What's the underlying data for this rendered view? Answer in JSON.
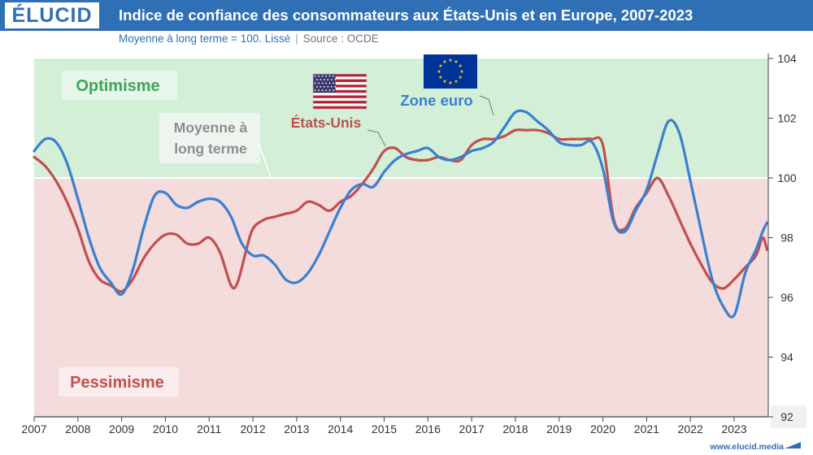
{
  "header": {
    "logo": "ÉLUCID",
    "title": "Indice de confiance des consommateurs aux États-Unis et en Europe, 2007-2023"
  },
  "subtitle": {
    "main": "Moyenne à long terme = 100. Lissé",
    "source": "Source : OCDE"
  },
  "footer": {
    "url": "www.elucid.media"
  },
  "colors": {
    "header": "#2f6fb6",
    "optimism_zone": "#d3efd8",
    "pessimism_zone": "#f4dbdc",
    "us": "#c0504d",
    "euro": "#3a7fd0",
    "optimism_text": "#3fa55b",
    "pessimism_text": "#c0504d"
  },
  "chart_data": {
    "type": "line",
    "title": "Indice de confiance des consommateurs aux États-Unis et en Europe, 2007-2023",
    "subtitle": "Moyenne à long terme = 100. Lissé",
    "xlabel": "",
    "ylabel": "",
    "xlim": [
      2007,
      2023.75
    ],
    "ylim": [
      92,
      104
    ],
    "x_ticks": [
      2007,
      2008,
      2009,
      2010,
      2011,
      2012,
      2013,
      2014,
      2015,
      2016,
      2017,
      2018,
      2019,
      2020,
      2021,
      2022,
      2023
    ],
    "y_ticks": [
      92,
      94,
      96,
      98,
      100,
      102,
      104
    ],
    "y_axis_position": "right",
    "reference_line": {
      "y": 100,
      "label": "Moyenne à long terme"
    },
    "zones": [
      {
        "label": "Optimisme",
        "from": 100,
        "to": 104
      },
      {
        "label": "Pessimisme",
        "from": 92,
        "to": 100
      }
    ],
    "series": [
      {
        "name": "États-Unis",
        "x": [
          2007,
          2007.25,
          2007.5,
          2007.75,
          2008,
          2008.25,
          2008.5,
          2008.75,
          2009,
          2009.25,
          2009.5,
          2009.75,
          2010,
          2010.25,
          2010.5,
          2010.75,
          2011,
          2011.25,
          2011.5,
          2011.65,
          2011.85,
          2012,
          2012.25,
          2012.5,
          2012.75,
          2013,
          2013.25,
          2013.5,
          2013.75,
          2014,
          2014.25,
          2014.5,
          2014.75,
          2015,
          2015.25,
          2015.5,
          2015.75,
          2016,
          2016.25,
          2016.5,
          2016.75,
          2017,
          2017.25,
          2017.5,
          2017.75,
          2018,
          2018.25,
          2018.5,
          2018.75,
          2019,
          2019.25,
          2019.5,
          2019.75,
          2020,
          2020.25,
          2020.5,
          2020.75,
          2021,
          2021.25,
          2021.5,
          2021.75,
          2022,
          2022.25,
          2022.5,
          2022.75,
          2023,
          2023.25,
          2023.5,
          2023.65,
          2023.75
        ],
        "values": [
          100.7,
          100.4,
          99.9,
          99.2,
          98.3,
          97.2,
          96.6,
          96.4,
          96.2,
          96.6,
          97.3,
          97.8,
          98.1,
          98.1,
          97.8,
          97.8,
          98.0,
          97.5,
          96.4,
          96.5,
          97.6,
          98.3,
          98.6,
          98.7,
          98.8,
          98.9,
          99.2,
          99.1,
          98.9,
          99.2,
          99.4,
          99.8,
          100.3,
          100.9,
          101.0,
          100.7,
          100.6,
          100.6,
          100.7,
          100.6,
          100.6,
          101.1,
          101.3,
          101.3,
          101.4,
          101.6,
          101.6,
          101.6,
          101.5,
          101.3,
          101.3,
          101.3,
          101.3,
          101.1,
          98.6,
          98.3,
          99.0,
          99.5,
          100.0,
          99.4,
          98.6,
          97.8,
          97.1,
          96.5,
          96.3,
          96.6,
          97.0,
          97.4,
          98.0,
          97.6
        ]
      },
      {
        "name": "Zone euro",
        "x": [
          2007,
          2007.25,
          2007.5,
          2007.75,
          2008,
          2008.25,
          2008.5,
          2008.75,
          2009,
          2009.25,
          2009.5,
          2009.75,
          2010,
          2010.25,
          2010.5,
          2010.75,
          2011,
          2011.25,
          2011.5,
          2011.75,
          2012,
          2012.25,
          2012.5,
          2012.75,
          2013,
          2013.25,
          2013.5,
          2013.75,
          2014,
          2014.25,
          2014.5,
          2014.75,
          2015,
          2015.25,
          2015.5,
          2015.75,
          2016,
          2016.25,
          2016.5,
          2016.75,
          2017,
          2017.25,
          2017.5,
          2017.75,
          2018,
          2018.25,
          2018.5,
          2018.75,
          2019,
          2019.25,
          2019.5,
          2019.75,
          2020,
          2020.25,
          2020.5,
          2020.75,
          2021,
          2021.25,
          2021.5,
          2021.75,
          2022,
          2022.25,
          2022.5,
          2022.75,
          2023,
          2023.25,
          2023.5,
          2023.65,
          2023.75
        ],
        "values": [
          100.9,
          101.3,
          101.2,
          100.5,
          99.3,
          98.0,
          97.0,
          96.5,
          96.1,
          96.9,
          98.3,
          99.4,
          99.5,
          99.1,
          99.0,
          99.2,
          99.3,
          99.2,
          98.7,
          97.8,
          97.4,
          97.4,
          97.1,
          96.6,
          96.5,
          96.8,
          97.4,
          98.2,
          99.0,
          99.6,
          99.8,
          99.7,
          100.2,
          100.6,
          100.8,
          100.9,
          101.0,
          100.7,
          100.6,
          100.7,
          100.9,
          101.0,
          101.2,
          101.7,
          102.2,
          102.2,
          101.9,
          101.6,
          101.2,
          101.1,
          101.1,
          101.2,
          100.3,
          98.5,
          98.2,
          98.9,
          99.6,
          100.8,
          101.9,
          101.5,
          99.9,
          98.2,
          96.6,
          95.7,
          95.4,
          96.8,
          97.6,
          98.2,
          98.5
        ]
      }
    ],
    "annotations": [
      "Optimisme",
      "Pessimisme",
      "Moyenne à long terme",
      "États-Unis",
      "Zone euro"
    ]
  },
  "labels": {
    "optimism": "Optimisme",
    "pessimism": "Pessimisme",
    "average_line1": "Moyenne à",
    "average_line2": "long terme",
    "us": "États-Unis",
    "euro": "Zone euro"
  },
  "icons": {
    "us_flag": "us-flag-icon",
    "eu_flag": "eu-flag-icon"
  }
}
